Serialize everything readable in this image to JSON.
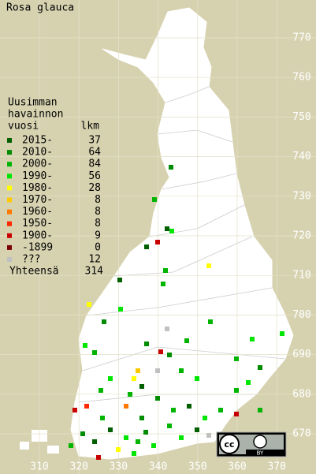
{
  "title": "Rosa glauca",
  "legend": {
    "heading": [
      "Uusimman",
      "havainnon",
      "vuosi"
    ],
    "count_heading": "lkm",
    "rows": [
      {
        "label": "2015-",
        "count": 37,
        "color": "#006000"
      },
      {
        "label": "2010-",
        "count": 64,
        "color": "#008c00"
      },
      {
        "label": "2000-",
        "count": 84,
        "color": "#00b400"
      },
      {
        "label": "1990-",
        "count": 56,
        "color": "#00e600"
      },
      {
        "label": "1980-",
        "count": 28,
        "color": "#ffff00"
      },
      {
        "label": "1970-",
        "count": 8,
        "color": "#ffc800"
      },
      {
        "label": "1960-",
        "count": 8,
        "color": "#ff7800"
      },
      {
        "label": "1950-",
        "count": 8,
        "color": "#ff2800"
      },
      {
        "label": "1900-",
        "count": 9,
        "color": "#c80000"
      },
      {
        "label": "-1899",
        "count": 0,
        "color": "#780000"
      },
      {
        "label": "???",
        "count": 12,
        "color": "#c0c0c0"
      }
    ],
    "total": {
      "label": "Yhteensä",
      "count": 314
    }
  },
  "grid": {
    "y_labels": [
      770,
      760,
      750,
      740,
      730,
      720,
      710,
      700,
      690,
      680,
      670
    ],
    "x_labels": [
      310,
      320,
      330,
      340,
      350,
      360,
      370
    ]
  },
  "badge": {
    "label": "BY"
  }
}
